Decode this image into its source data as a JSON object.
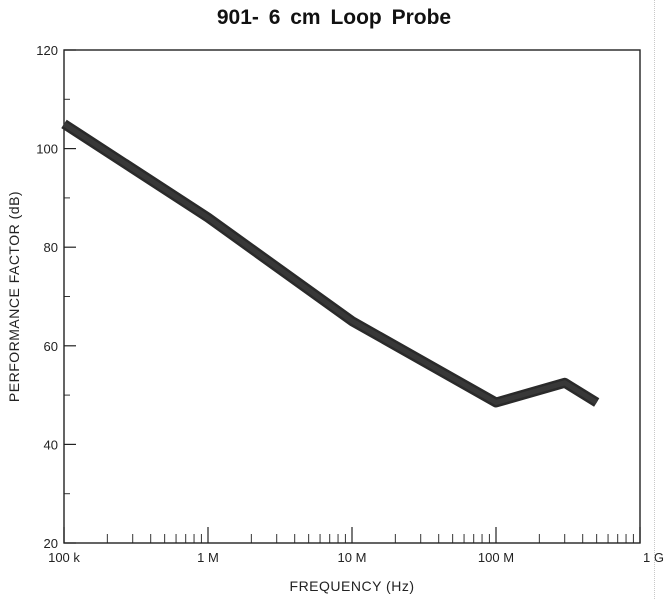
{
  "chart_data": {
    "type": "line",
    "title": "901- 6 cm Loop Probe",
    "xlabel": "FREQUENCY (Hz)",
    "ylabel": "PERFORMANCE FACTOR (dB)",
    "x_scale": "log",
    "xlim": [
      100000,
      1000000000
    ],
    "ylim": [
      20,
      120
    ],
    "x_ticks": [
      {
        "value": 100000,
        "label": "100 k"
      },
      {
        "value": 1000000,
        "label": "1 M"
      },
      {
        "value": 10000000,
        "label": "10 M"
      },
      {
        "value": 100000000,
        "label": "100 M"
      },
      {
        "value": 1000000000,
        "label": "1 G"
      }
    ],
    "y_ticks": [
      {
        "value": 20,
        "label": "20"
      },
      {
        "value": 40,
        "label": "40"
      },
      {
        "value": 60,
        "label": "60"
      },
      {
        "value": 80,
        "label": "80"
      },
      {
        "value": 100,
        "label": "100"
      },
      {
        "value": 120,
        "label": "120"
      }
    ],
    "grid": false,
    "series": [
      {
        "x": [
          100000,
          1000000,
          10000000,
          100000000,
          300000000,
          500000000
        ],
        "y": [
          105,
          86,
          65,
          48.5,
          52.5,
          48.5
        ]
      }
    ],
    "line_color": "#3a3a3a"
  }
}
